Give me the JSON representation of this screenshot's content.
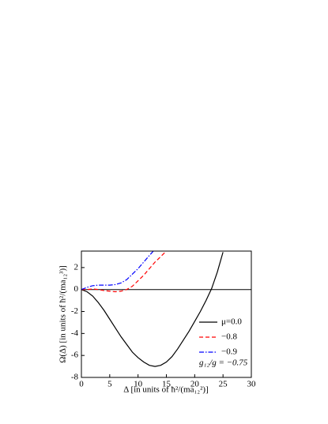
{
  "chart_data": {
    "type": "line",
    "xlabel": "Δ [in units of ħ²/(ma₁₂²)]",
    "ylabel": "Ω(Δ)  [in units of ħ²/(ma₁₂³)]",
    "annotation": "g₁₂/g = −0.75",
    "xlim": [
      0,
      30
    ],
    "xticks": [
      0,
      5,
      10,
      15,
      20,
      25,
      30
    ],
    "ylim": [
      -8,
      3.5
    ],
    "yticks": [
      -8,
      -6,
      -4,
      -2,
      0,
      2
    ],
    "reference_line": 0,
    "legend": "lower right",
    "series": [
      {
        "name": "μ=0.0",
        "color": "#000000",
        "dash": "none",
        "x": [
          0,
          1,
          2,
          3,
          4,
          5,
          6,
          7,
          8,
          9,
          10,
          11,
          12,
          13,
          14,
          15,
          16,
          17,
          18,
          19,
          20,
          21,
          22,
          23,
          24,
          25
        ],
        "values": [
          0,
          -0.2,
          -0.6,
          -1.2,
          -1.9,
          -2.7,
          -3.5,
          -4.3,
          -5.0,
          -5.7,
          -6.2,
          -6.6,
          -6.9,
          -7.0,
          -6.9,
          -6.6,
          -6.1,
          -5.4,
          -4.6,
          -3.8,
          -2.9,
          -2.0,
          -1.0,
          0.1,
          1.6,
          3.4
        ]
      },
      {
        "name": "−0.8",
        "color": "#ff0000",
        "dash": "5,3",
        "x": [
          0,
          1,
          2,
          3,
          4,
          5,
          6,
          7,
          8,
          9,
          10,
          11,
          12,
          13,
          14,
          15
        ],
        "values": [
          0,
          0,
          0.05,
          0,
          -0.1,
          -0.15,
          -0.2,
          -0.15,
          0,
          0.3,
          0.8,
          1.3,
          1.9,
          2.5,
          3.0,
          3.5
        ]
      },
      {
        "name": "−0.9",
        "color": "#0000ff",
        "dash": "6,2,1.5,2",
        "x": [
          0,
          1,
          2,
          3,
          4,
          5,
          6,
          7,
          8,
          9,
          10,
          11,
          12,
          12.7
        ],
        "values": [
          0,
          0.2,
          0.35,
          0.4,
          0.4,
          0.4,
          0.45,
          0.6,
          0.9,
          1.4,
          1.9,
          2.5,
          3.1,
          3.5
        ]
      }
    ]
  }
}
